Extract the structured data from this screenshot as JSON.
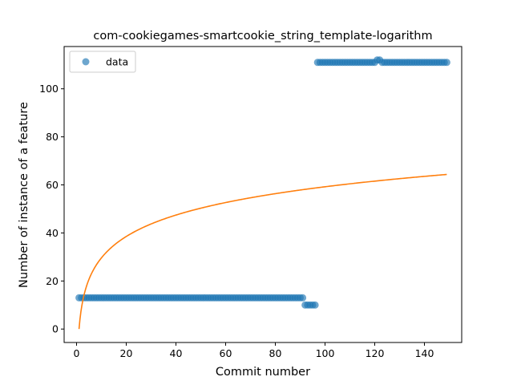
{
  "chart_data": {
    "type": "scatter",
    "title": "com-cookiegames-smartcookie_string_template-logarithm",
    "xlabel": "Commit number",
    "ylabel": "Number of instance of a feature",
    "xlim": [
      -5,
      155
    ],
    "ylim": [
      -5.6,
      117.6
    ],
    "xticks": [
      0,
      20,
      40,
      60,
      80,
      100,
      120,
      140
    ],
    "yticks": [
      0,
      20,
      40,
      60,
      80,
      100
    ],
    "grid": false,
    "legend": {
      "position": "top-left",
      "entries": [
        "data"
      ]
    },
    "colors": {
      "scatter": "#1f77b4",
      "fit": "#ff7f0e"
    },
    "series": [
      {
        "name": "data",
        "kind": "scatter",
        "segments": [
          {
            "x_from": 1,
            "x_to": 91,
            "y": 13
          },
          {
            "x_from": 92,
            "x_to": 96,
            "y": 10
          },
          {
            "x_from": 97,
            "x_to": 120,
            "y": 111
          },
          {
            "x_from": 121,
            "x_to": 122,
            "y": 112
          },
          {
            "x_from": 123,
            "x_to": 149,
            "y": 111
          }
        ]
      },
      {
        "kind": "line",
        "function": "logarithmic fit y = 12.86*ln(x)",
        "a": 12.86,
        "b": 0,
        "x_from": 1,
        "x_to": 149
      }
    ]
  }
}
